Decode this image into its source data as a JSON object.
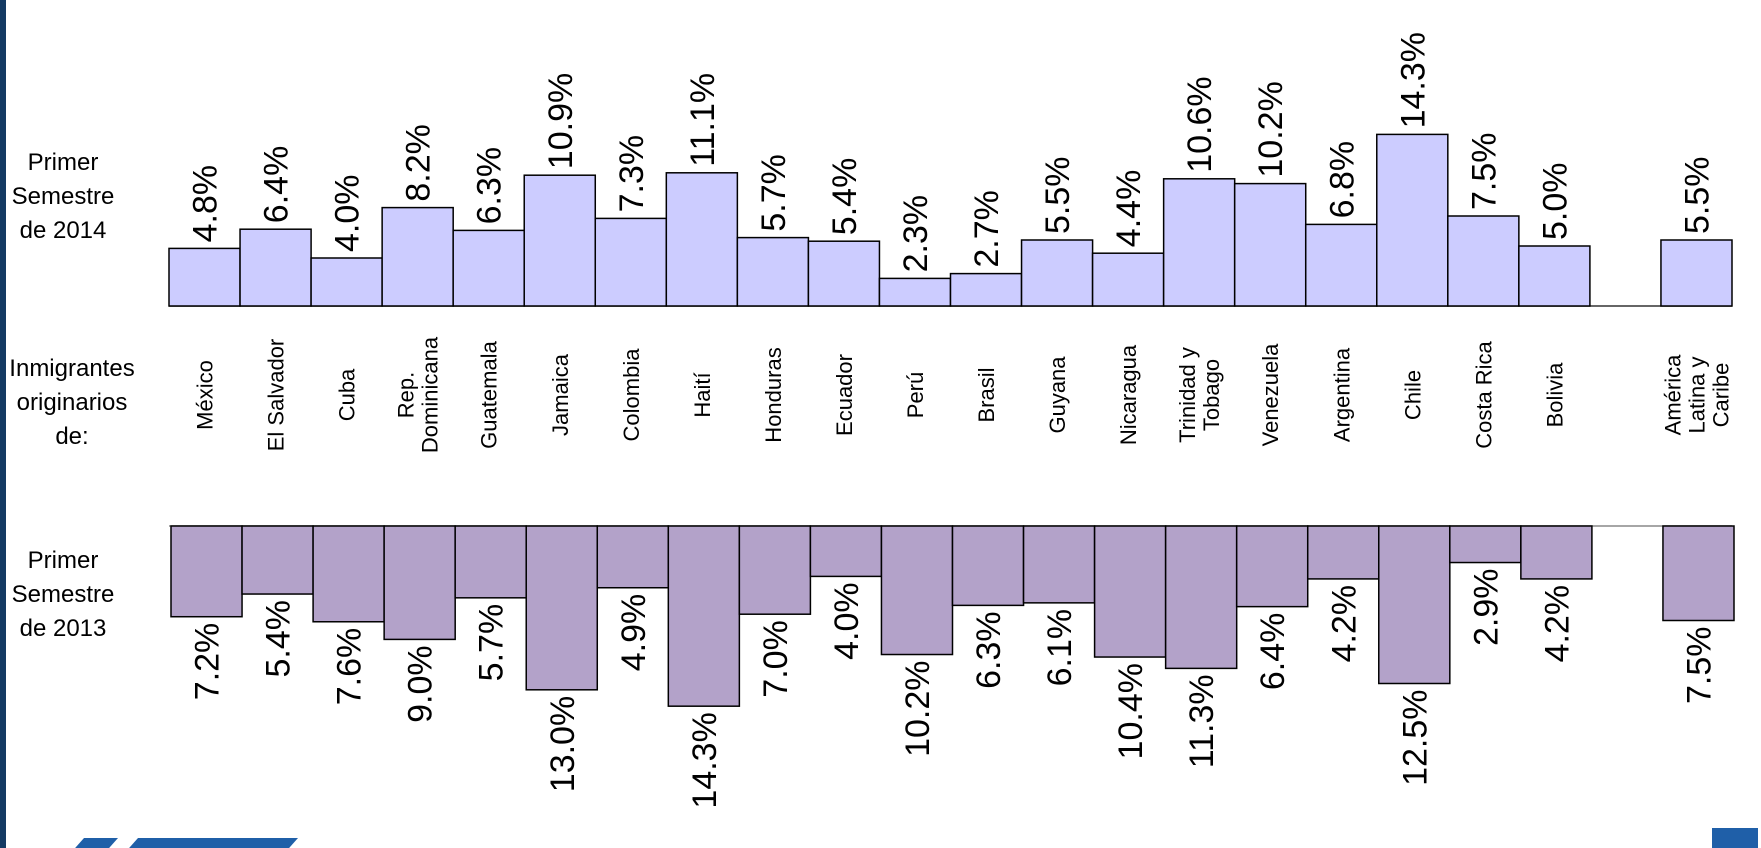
{
  "row_labels": {
    "series_2014": "Primer\nSemestre\nde 2014",
    "categories": "Inmigrantes\noriginarios\nde:",
    "series_2013": "Primer\nSemestre\nde 2013"
  },
  "colors": {
    "series_2014": "#ccccff",
    "series_2013": "#b3a2c9",
    "frame": "#143a63",
    "logo": "#1f5fa8"
  },
  "chart_data": {
    "type": "bar",
    "layout": "mirrored-bars",
    "value_suffix": "%",
    "categories": [
      "México",
      "El Salvador",
      "Cuba",
      "Rep.\nDominicana",
      "Guatemala",
      "Jamaica",
      "Colombia",
      "Haití",
      "Honduras",
      "Ecuador",
      "Perú",
      "Brasil",
      "Guyana",
      "Nicaragua",
      "Trinidad y\nTobago",
      "Venezuela",
      "Argentina",
      "Chile",
      "Costa Rica",
      "Bolivia",
      "",
      "América\nLatina y\nCaribe"
    ],
    "series": [
      {
        "name": "Primer Semestre de 2014",
        "direction": "up",
        "values": [
          4.8,
          6.4,
          4.0,
          8.2,
          6.3,
          10.9,
          7.3,
          11.1,
          5.7,
          5.4,
          2.3,
          2.7,
          5.5,
          4.4,
          10.6,
          10.2,
          6.8,
          14.3,
          7.5,
          5.0,
          null,
          5.5
        ]
      },
      {
        "name": "Primer Semestre de 2013",
        "direction": "down",
        "values": [
          7.2,
          5.4,
          7.6,
          9.0,
          5.7,
          13.0,
          4.9,
          14.3,
          7.0,
          4.0,
          10.2,
          6.3,
          6.1,
          10.4,
          11.3,
          6.4,
          4.2,
          12.5,
          2.9,
          4.2,
          null,
          7.5
        ]
      }
    ],
    "ylim": [
      0,
      15
    ],
    "grid": false,
    "legend": "none"
  }
}
